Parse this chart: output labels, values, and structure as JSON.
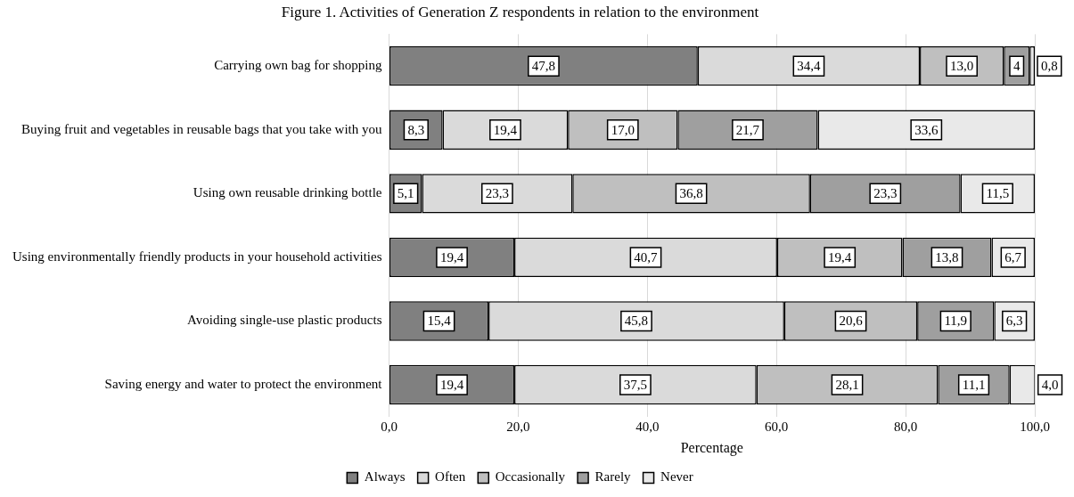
{
  "chart_data": {
    "type": "bar",
    "orientation": "horizontal",
    "stacked": true,
    "title": "Figure 1. Activities of Generation Z respondents in relation to the environment",
    "xlabel": "Percentage",
    "categories": [
      "Carrying own bag for shopping",
      "Buying fruit and vegetables in reusable bags that you take with you",
      "Using own reusable drinking bottle",
      "Using environmentally friendly products in your household activities",
      "Avoiding single-use plastic products",
      "Saving energy and water to protect the environment"
    ],
    "series": [
      {
        "name": "Always",
        "color": "#808080",
        "values": [
          47.8,
          8.3,
          5.1,
          19.4,
          15.4,
          19.4
        ],
        "value_labels": [
          "47,8",
          "8,3",
          "5,1",
          "19,4",
          "15,4",
          "19,4"
        ]
      },
      {
        "name": "Often",
        "color": "#dadada",
        "values": [
          34.4,
          19.4,
          23.3,
          40.7,
          45.8,
          37.5
        ],
        "value_labels": [
          "34,4",
          "19,4",
          "23,3",
          "40,7",
          "45,8",
          "37,5"
        ]
      },
      {
        "name": "Occasionally",
        "color": "#bfbfbf",
        "values": [
          13.0,
          17.0,
          36.8,
          19.4,
          20.6,
          28.1
        ],
        "value_labels": [
          "13,0",
          "17,0",
          "36,8",
          "19,4",
          "20,6",
          "28,1"
        ]
      },
      {
        "name": "Rarely",
        "color": "#9f9f9f",
        "values": [
          4,
          21.7,
          23.3,
          13.8,
          11.9,
          11.1
        ],
        "value_labels": [
          "4",
          "21,7",
          "23,3",
          "13,8",
          "11,9",
          "11,1"
        ]
      },
      {
        "name": "Never",
        "color": "#e9e9e9",
        "values": [
          0.8,
          33.6,
          11.5,
          6.7,
          6.3,
          4.0
        ],
        "value_labels": [
          "0,8",
          "33,6",
          "11,5",
          "6,7",
          "6,3",
          "4,0"
        ]
      }
    ],
    "xlim": [
      0,
      100
    ],
    "xticks": [
      {
        "value": 0,
        "label": "0,0"
      },
      {
        "value": 20,
        "label": "20,0"
      },
      {
        "value": 40,
        "label": "40,0"
      },
      {
        "value": 60,
        "label": "60,0"
      },
      {
        "value": 80,
        "label": "80,0"
      },
      {
        "value": 100,
        "label": "100,0"
      }
    ],
    "grid": "x",
    "legend": "bottom"
  }
}
